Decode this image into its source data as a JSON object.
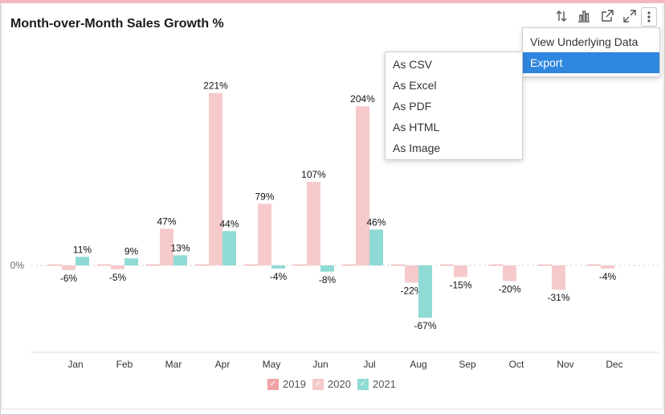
{
  "colors": {
    "series_2019": "#f2a3a6",
    "series_2020": "#f6cacb",
    "series_2021": "#8fdad4",
    "accent": "#2f86de",
    "top_bar": "#f2b9bc"
  },
  "widget": {
    "title": "Month-over-Month Sales Growth %",
    "toolbar": {
      "icons": [
        "sort-icon",
        "chart-type-icon",
        "open-new-icon",
        "expand-icon",
        "more-options-icon"
      ]
    }
  },
  "options_menu": {
    "items": [
      {
        "label": "View Underlying Data",
        "active": false
      },
      {
        "label": "Export",
        "active": true
      }
    ]
  },
  "export_submenu": {
    "items": [
      {
        "label": "As CSV"
      },
      {
        "label": "As Excel"
      },
      {
        "label": "As PDF"
      },
      {
        "label": "As HTML"
      },
      {
        "label": "As Image"
      }
    ]
  },
  "chart_data": {
    "type": "bar",
    "title": "Month-over-Month Sales Growth %",
    "categories": [
      "Jan",
      "Feb",
      "Mar",
      "Apr",
      "May",
      "Jun",
      "Jul",
      "Aug",
      "Sep",
      "Oct",
      "Nov",
      "Dec"
    ],
    "series": [
      {
        "name": "2019",
        "values": [
          0,
          0,
          0,
          0,
          0,
          0,
          0,
          0,
          0,
          0,
          0,
          0
        ],
        "labels": [
          "",
          "",
          "",
          "",
          "",
          "",
          "",
          "",
          "",
          "",
          "",
          ""
        ]
      },
      {
        "name": "2020",
        "values": [
          -6,
          -5,
          47,
          221,
          79,
          107,
          204,
          -22,
          -15,
          -20,
          -31,
          -4
        ],
        "labels": [
          "-6%",
          "-5%",
          "47%",
          "221%",
          "79%",
          "107%",
          "204%",
          "-22%",
          "-15%",
          "-20%",
          "-31%",
          "-4%"
        ]
      },
      {
        "name": "2021",
        "values": [
          11,
          9,
          13,
          44,
          -4,
          -8,
          46,
          -67,
          null,
          null,
          null,
          null
        ],
        "labels": [
          "11%",
          "9%",
          "13%",
          "44%",
          "-4%",
          "-8%",
          "46%",
          "-67%",
          "",
          "",
          "",
          ""
        ]
      }
    ],
    "yticks": [
      {
        "value": 0,
        "label": "0%"
      }
    ],
    "ylim": [
      -112,
      232
    ],
    "grid": false,
    "legend": "bottom"
  }
}
